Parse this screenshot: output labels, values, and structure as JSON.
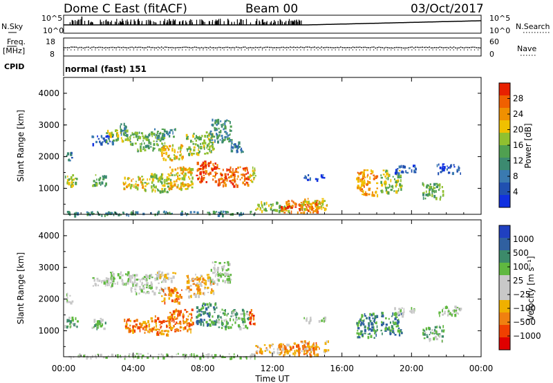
{
  "header": {
    "station": "Dome C East (fitACF)",
    "beam": "Beam 00",
    "date": "03/Oct/2017"
  },
  "strips": {
    "nsky_label": "N.Sky",
    "nsky_ticks": [
      "10^5",
      "10^0"
    ],
    "nsearch_label": "N.Search",
    "nsearch_ticks": [
      "10^5",
      "10^0"
    ],
    "freq_label": "Freq.",
    "freq_unit": "[MHz]",
    "freq_ticks": [
      "18",
      "8"
    ],
    "nave_label": "Nave",
    "nave_ticks": [
      "60",
      "0"
    ],
    "cpid_label": "CPID",
    "cpid_value": "normal (fast) 151"
  },
  "time_axis": {
    "label": "Time UT",
    "ticks": [
      "00:00",
      "04:00",
      "08:00",
      "12:00",
      "16:00",
      "20:00",
      "00:00"
    ]
  },
  "chart_data": [
    {
      "type": "heatmap",
      "name": "power",
      "ylabel": "Slant Range [km]",
      "yticks": [
        "1000",
        "2000",
        "3000",
        "4000"
      ],
      "ylim": [
        180,
        4500
      ],
      "xlim": [
        0,
        24
      ],
      "colorbar_label": "Power [dB]",
      "colorbar_ticks": [
        "4",
        "8",
        "12",
        "16",
        "20",
        "24",
        "28"
      ],
      "colorbar_colors": [
        "#1030e0",
        "#2050b0",
        "#3a7ab0",
        "#3c8a70",
        "#50a050",
        "#90c030",
        "#f0c000",
        "#f09000",
        "#f06000",
        "#e82000"
      ],
      "regions": [
        {
          "t": [
            0.1,
            0.5
          ],
          "r": [
            1900,
            2200
          ],
          "level": 2
        },
        {
          "t": [
            0.0,
            0.8
          ],
          "r": [
            1100,
            1450
          ],
          "level": 5
        },
        {
          "t": [
            1.6,
            2.4
          ],
          "r": [
            1100,
            1500
          ],
          "level": 4
        },
        {
          "t": [
            1.6,
            2.8
          ],
          "r": [
            2400,
            2700
          ],
          "level": 1
        },
        {
          "t": [
            2.4,
            3.8
          ],
          "r": [
            2500,
            2900
          ],
          "level": 5
        },
        {
          "t": [
            3.4,
            4.6
          ],
          "r": [
            1000,
            1400
          ],
          "level": 6
        },
        {
          "t": [
            3.2,
            3.6
          ],
          "r": [
            2700,
            3100
          ],
          "level": 3
        },
        {
          "t": [
            3.8,
            5.8
          ],
          "r": [
            2200,
            2800
          ],
          "level": 4
        },
        {
          "t": [
            5.2,
            6.4
          ],
          "r": [
            2600,
            2900
          ],
          "level": 3
        },
        {
          "t": [
            4.6,
            6.2
          ],
          "r": [
            900,
            1500
          ],
          "level": 5
        },
        {
          "t": [
            5.6,
            6.8
          ],
          "r": [
            1900,
            2400
          ],
          "level": 6
        },
        {
          "t": [
            6.0,
            7.4
          ],
          "r": [
            1000,
            1700
          ],
          "level": 6
        },
        {
          "t": [
            7.0,
            8.6
          ],
          "r": [
            2100,
            2800
          ],
          "level": 5
        },
        {
          "t": [
            7.6,
            8.8
          ],
          "r": [
            1200,
            1900
          ],
          "level": 8
        },
        {
          "t": [
            8.8,
            10.6
          ],
          "r": [
            1100,
            1700
          ],
          "level": 8
        },
        {
          "t": [
            8.4,
            9.6
          ],
          "r": [
            2500,
            3200
          ],
          "level": 3
        },
        {
          "t": [
            9.6,
            10.4
          ],
          "r": [
            2100,
            2500
          ],
          "level": 2
        },
        {
          "t": [
            10.6,
            11.0
          ],
          "r": [
            1200,
            1700
          ],
          "level": 6
        },
        {
          "t": [
            11.0,
            13.0
          ],
          "r": [
            300,
            600
          ],
          "level": 5
        },
        {
          "t": [
            12.4,
            14.6
          ],
          "r": [
            250,
            650
          ],
          "level": 8
        },
        {
          "t": [
            13.6,
            15.2
          ],
          "r": [
            350,
            700
          ],
          "level": 6
        },
        {
          "t": [
            13.8,
            15.0
          ],
          "r": [
            1300,
            1450
          ],
          "level": 1
        },
        {
          "t": [
            16.8,
            18.0
          ],
          "r": [
            800,
            1600
          ],
          "level": 7
        },
        {
          "t": [
            18.2,
            19.4
          ],
          "r": [
            900,
            1600
          ],
          "level": 5
        },
        {
          "t": [
            19.0,
            20.2
          ],
          "r": [
            1500,
            1750
          ],
          "level": 1
        },
        {
          "t": [
            20.6,
            21.8
          ],
          "r": [
            700,
            1200
          ],
          "level": 4
        },
        {
          "t": [
            21.4,
            22.8
          ],
          "r": [
            1500,
            1800
          ],
          "level": 1
        },
        {
          "t": [
            0.0,
            11.0
          ],
          "r": [
            180,
            300
          ],
          "level": 3
        }
      ]
    },
    {
      "type": "heatmap",
      "name": "velocity",
      "ylabel": "Slant Range [km]",
      "yticks": [
        "1000",
        "2000",
        "3000",
        "4000"
      ],
      "ylim": [
        180,
        4500
      ],
      "xlim": [
        0,
        24
      ],
      "colorbar_label": "Velocity [m s⁻¹]",
      "colorbar_ticks": [
        "1000",
        "500",
        "100",
        "25",
        "−25",
        "−100",
        "−500",
        "−1000"
      ],
      "colorbar_colors": [
        "#2040c0",
        "#3060a0",
        "#3c8a6a",
        "#60b840",
        "#c8c8c8",
        "#c8c8c8",
        "#f0b000",
        "#f08010",
        "#f04000",
        "#e00000"
      ],
      "regions": [
        {
          "t": [
            0.1,
            0.5
          ],
          "r": [
            1900,
            2200
          ],
          "level": 4
        },
        {
          "t": [
            0.0,
            0.8
          ],
          "r": [
            1100,
            1450
          ],
          "level": 3
        },
        {
          "t": [
            1.6,
            2.4
          ],
          "r": [
            1100,
            1500
          ],
          "level": 3
        },
        {
          "t": [
            1.6,
            2.8
          ],
          "r": [
            2400,
            2700
          ],
          "level": 4
        },
        {
          "t": [
            2.4,
            3.8
          ],
          "r": [
            2500,
            2900
          ],
          "level": 4
        },
        {
          "t": [
            3.4,
            4.6
          ],
          "r": [
            1000,
            1400
          ],
          "level": 7
        },
        {
          "t": [
            3.8,
            5.8
          ],
          "r": [
            2200,
            2800
          ],
          "level": 4
        },
        {
          "t": [
            5.2,
            6.4
          ],
          "r": [
            2600,
            2900
          ],
          "level": 5
        },
        {
          "t": [
            4.6,
            6.2
          ],
          "r": [
            900,
            1500
          ],
          "level": 7
        },
        {
          "t": [
            5.6,
            6.8
          ],
          "r": [
            1900,
            2400
          ],
          "level": 7
        },
        {
          "t": [
            6.0,
            7.4
          ],
          "r": [
            1000,
            1700
          ],
          "level": 7
        },
        {
          "t": [
            7.0,
            8.6
          ],
          "r": [
            2100,
            2800
          ],
          "level": 6
        },
        {
          "t": [
            7.6,
            8.8
          ],
          "r": [
            1200,
            1900
          ],
          "level": 2
        },
        {
          "t": [
            8.8,
            10.6
          ],
          "r": [
            1100,
            1700
          ],
          "level": 3
        },
        {
          "t": [
            8.4,
            9.6
          ],
          "r": [
            2500,
            3200
          ],
          "level": 4
        },
        {
          "t": [
            10.6,
            11.0
          ],
          "r": [
            1200,
            1700
          ],
          "level": 8
        },
        {
          "t": [
            11.0,
            13.0
          ],
          "r": [
            300,
            600
          ],
          "level": 6
        },
        {
          "t": [
            12.4,
            14.6
          ],
          "r": [
            250,
            650
          ],
          "level": 7
        },
        {
          "t": [
            13.6,
            15.2
          ],
          "r": [
            350,
            700
          ],
          "level": 6
        },
        {
          "t": [
            13.8,
            15.0
          ],
          "r": [
            1300,
            1450
          ],
          "level": 4
        },
        {
          "t": [
            16.8,
            18.0
          ],
          "r": [
            800,
            1600
          ],
          "level": 2
        },
        {
          "t": [
            18.2,
            19.4
          ],
          "r": [
            900,
            1600
          ],
          "level": 2
        },
        {
          "t": [
            19.0,
            20.2
          ],
          "r": [
            1500,
            1750
          ],
          "level": 4
        },
        {
          "t": [
            20.6,
            21.8
          ],
          "r": [
            700,
            1200
          ],
          "level": 3
        },
        {
          "t": [
            21.4,
            22.8
          ],
          "r": [
            1500,
            1800
          ],
          "level": 4
        },
        {
          "t": [
            0.0,
            11.0
          ],
          "r": [
            180,
            300
          ],
          "level": 4
        }
      ]
    }
  ]
}
